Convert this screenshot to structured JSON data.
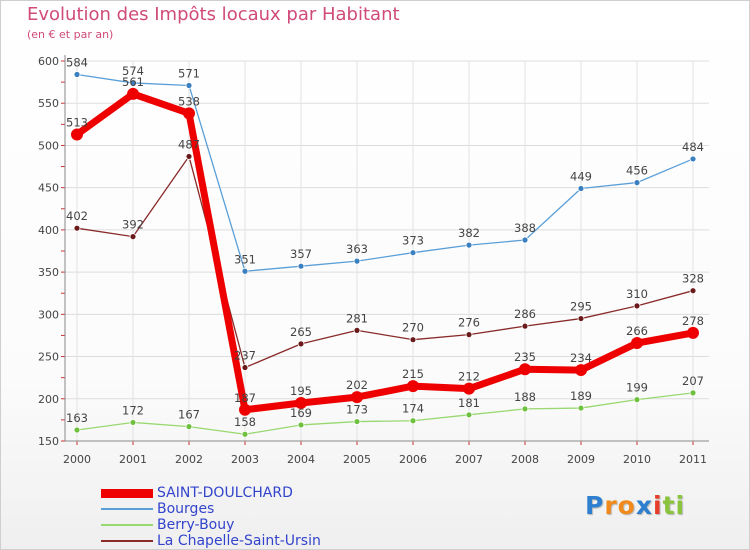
{
  "chart_data": {
    "type": "line",
    "title": "Evolution des Impôts locaux par Habitant",
    "subtitle": "(en € et par an)",
    "xlabel": "",
    "ylabel": "",
    "categories": [
      "2000",
      "2001",
      "2002",
      "2003",
      "2004",
      "2005",
      "2006",
      "2007",
      "2008",
      "2009",
      "2010",
      "2011"
    ],
    "ylim": [
      150,
      600
    ],
    "yticks": [
      150,
      200,
      250,
      300,
      350,
      400,
      450,
      500,
      550,
      600
    ],
    "grid": true,
    "legend_position": "bottom-left",
    "series": [
      {
        "name": "Bourges",
        "color": "#5a9fd8",
        "point_color": "#3a7fc0",
        "values": [
          584,
          574,
          571,
          351,
          357,
          363,
          373,
          382,
          388,
          449,
          456,
          484
        ],
        "labels": [
          "584",
          "574",
          "571",
          "351",
          "357",
          "363",
          "373",
          "382",
          "388",
          "449",
          "456",
          "484"
        ]
      },
      {
        "name": "La Chapelle-Saint-Ursin",
        "color": "#8a2a2a",
        "point_color": "#6a1a1a",
        "values": [
          402,
          392,
          487,
          237,
          265,
          281,
          270,
          276,
          286,
          295,
          310,
          328
        ],
        "labels": [
          "402",
          "392",
          "487",
          "237",
          "265",
          "281",
          "270",
          "276",
          "286",
          "295",
          "310",
          "328"
        ]
      },
      {
        "name": "Berry-Bouy",
        "color": "#98d870",
        "point_color": "#70c040",
        "values": [
          163,
          172,
          167,
          158,
          169,
          173,
          174,
          181,
          188,
          189,
          199,
          207
        ],
        "labels": [
          "163",
          "172",
          "167",
          "158",
          "169",
          "173",
          "174",
          "181",
          "188",
          "189",
          "199",
          "207"
        ]
      },
      {
        "name": "SAINT-DOULCHARD",
        "color": "#ee0000",
        "point_color": "#ee0000",
        "values": [
          513,
          561,
          538,
          187,
          195,
          202,
          215,
          212,
          235,
          234,
          266,
          278
        ],
        "labels": [
          "513",
          "561",
          "538",
          "187",
          "195",
          "202",
          "215",
          "212",
          "235",
          "234",
          "266",
          "278"
        ]
      }
    ],
    "legend": [
      "SAINT-DOULCHARD",
      "Bourges",
      "Berry-Bouy",
      "La Chapelle-Saint-Ursin"
    ]
  },
  "brand": {
    "letters": [
      "P",
      "r",
      "o",
      "x",
      "i",
      "t",
      "i"
    ],
    "colors": [
      "#2e7fd0",
      "#f08a1c",
      "#f08a1c",
      "#2e7fd0",
      "#e63c2a",
      "#8ac43c",
      "#8ac43c"
    ]
  }
}
